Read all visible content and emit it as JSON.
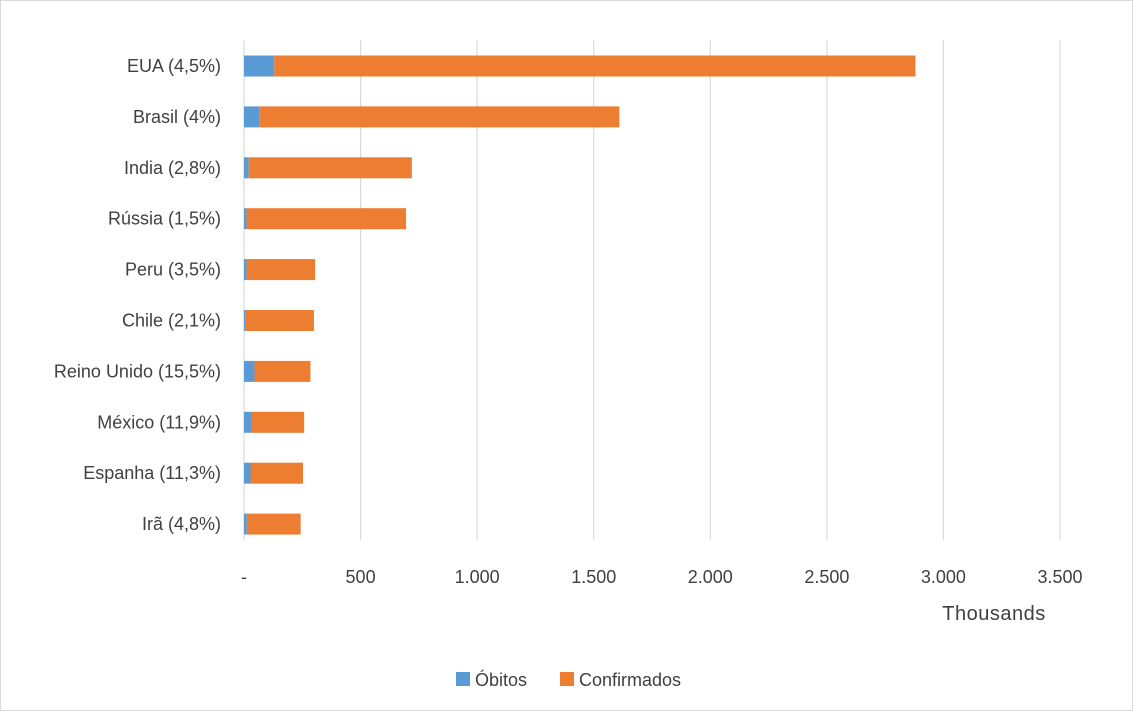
{
  "chart_data": {
    "type": "bar",
    "orientation": "horizontal",
    "stacked": true,
    "categories": [
      "EUA (4,5%)",
      "Brasil (4%)",
      "India (2,8%)",
      "Rússia (1,5%)",
      "Peru (3,5%)",
      "Chile (2,1%)",
      "Reino Unido (15,5%)",
      "México (11,9%)",
      "Espanha (11,3%)",
      "Irã (4,8%)"
    ],
    "series": [
      {
        "name": "Óbitos",
        "color": "#5B9BD5",
        "values": [
          130,
          65,
          20,
          11,
          11,
          6,
          45,
          32,
          28,
          12
        ]
      },
      {
        "name": "Confirmados",
        "color": "#ED7D31",
        "values": [
          2750,
          1545,
          700,
          684,
          294,
          294,
          240,
          226,
          225,
          231
        ]
      }
    ],
    "xlim": [
      0,
      3500
    ],
    "xticks": [
      0,
      500,
      1000,
      1500,
      2000,
      2500,
      3000,
      3500
    ],
    "xtick_labels": [
      "-",
      "500",
      "1.000",
      "1.500",
      "2.000",
      "2.500",
      "3.000",
      "3.500"
    ],
    "unit_label": "Thousands",
    "grid": "vertical",
    "legend_position": "bottom"
  }
}
